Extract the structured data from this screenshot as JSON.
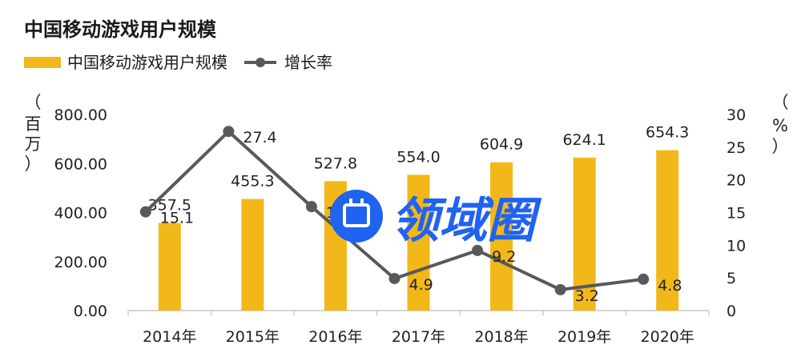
{
  "chart_data": {
    "type": "bar",
    "title": "中国移动游戏用户规模",
    "categories": [
      "2014年",
      "2015年",
      "2016年",
      "2017年",
      "2018年",
      "2019年",
      "2020年"
    ],
    "series": [
      {
        "name": "中国移动游戏用户规模",
        "type": "bar",
        "axis": "left",
        "values": [
          357.5,
          455.3,
          527.8,
          554.0,
          604.9,
          624.1,
          654.3
        ],
        "labels": [
          "357.5",
          "455.3",
          "527.8",
          "554.0",
          "604.9",
          "624.1",
          "654.3"
        ],
        "color": "#f2b81a"
      },
      {
        "name": "增长率",
        "type": "line",
        "axis": "right",
        "values": [
          15.1,
          27.4,
          15.9,
          4.9,
          9.2,
          3.2,
          4.8
        ],
        "labels": [
          "15.1",
          "27.4",
          "15.9",
          "4.9",
          "9.2",
          "3.2",
          "4.8"
        ],
        "color": "#595959"
      }
    ],
    "y_left": {
      "label_chars": [
        "（",
        "百",
        "万",
        "）"
      ],
      "ylim": [
        0,
        800
      ],
      "ticks": [
        "800.00",
        "600.00",
        "400.00",
        "200.00",
        "0.00"
      ]
    },
    "y_right": {
      "label_chars": [
        "（",
        "%",
        "）"
      ],
      "ylim": [
        0,
        30
      ],
      "ticks": [
        "30",
        "25",
        "20",
        "15",
        "10",
        "5",
        "0"
      ]
    },
    "legend_position": "top-left",
    "grid": false
  },
  "watermark": {
    "text": "领域圈",
    "color": "#1f63f0"
  }
}
